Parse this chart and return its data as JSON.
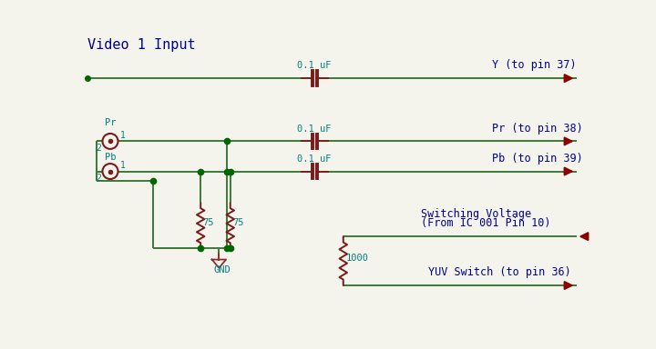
{
  "bg_color": "#f4f4ec",
  "wire_color": "#3a7a3a",
  "resistor_color": "#7a1a1a",
  "cap_color": "#7a1a1a",
  "arrow_color": "#8B0000",
  "label_color": "#00008B",
  "dot_color": "#006600",
  "gnd_color": "#8B3030",
  "text_color_teal": "#008080",
  "title": "Video 1 Input",
  "y_pin": "Y (to pin 37)",
  "pr_pin": "Pr (to pin 38)",
  "pb_pin": "Pb (to pin 39)",
  "sw_volt1": "Switching Voltage",
  "sw_volt2": "(From IC 001 Pin 10)",
  "yuv": "YUV Switch (to pin 36)",
  "gnd": "GND",
  "pr_label": "Pr",
  "pb_label": "Pb",
  "r75_1": "75",
  "r75_2": "75",
  "r1000": "1000",
  "cap1": "0.1 uF",
  "cap2": "0.1 uF",
  "cap3": "0.1 uF"
}
